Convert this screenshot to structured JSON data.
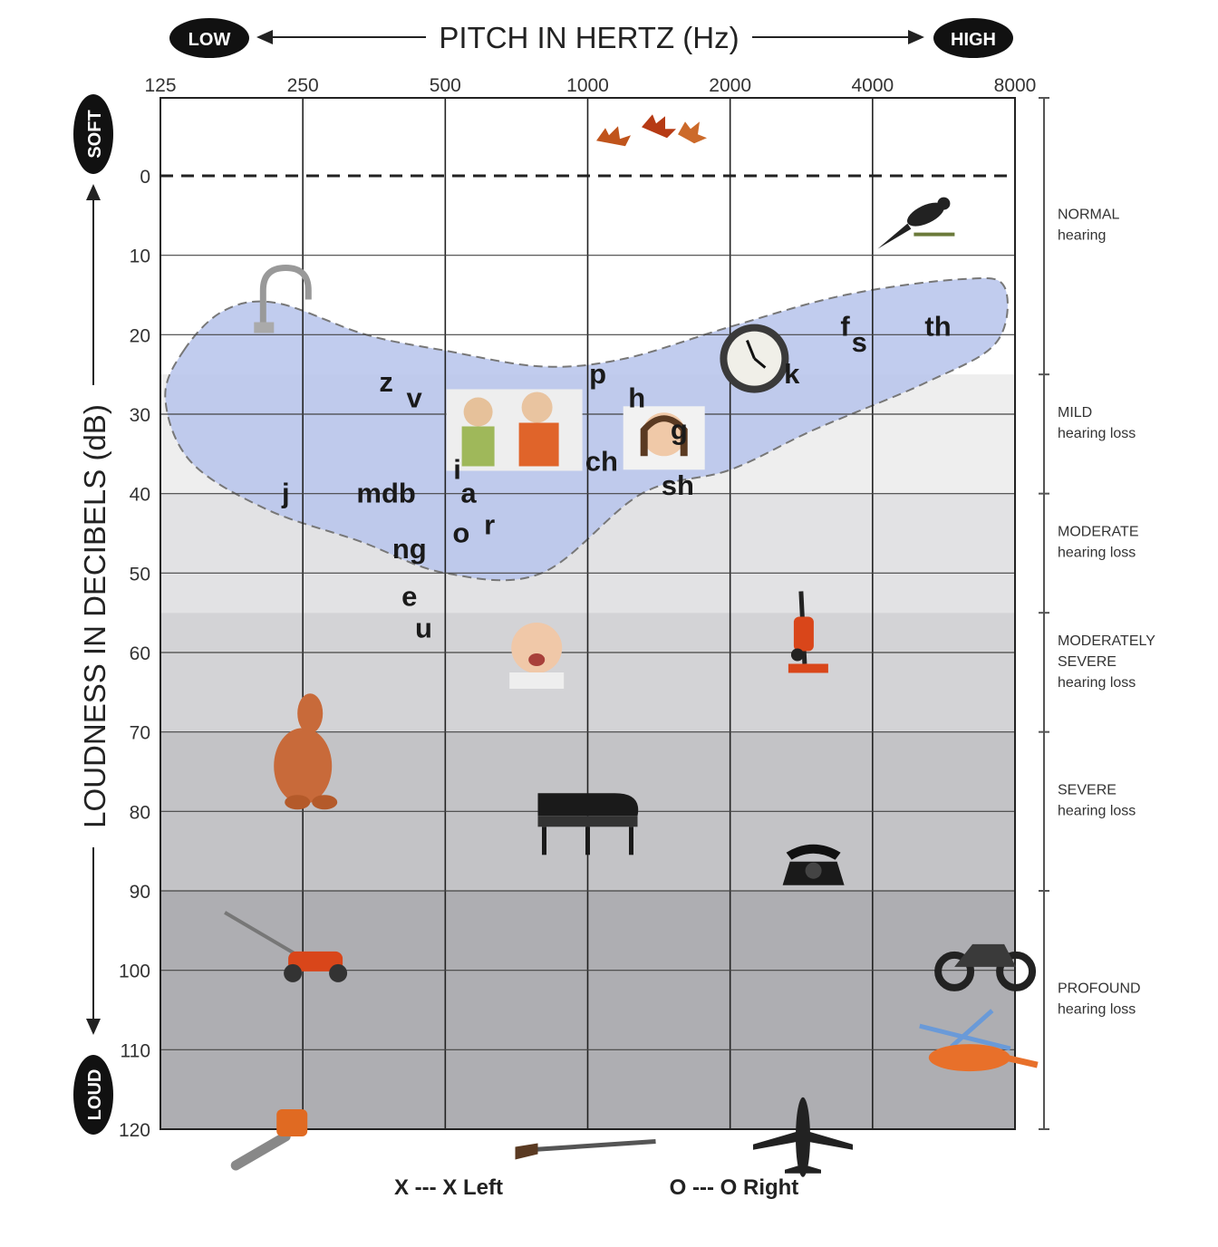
{
  "chart_data": {
    "type": "scatter",
    "x_title": "PITCH IN HERTZ (Hz)",
    "y_title": "LOUDNESS IN DECIBELS (dB)",
    "x_scale": "log2",
    "x_ticks": [
      125,
      250,
      500,
      1000,
      2000,
      4000,
      8000
    ],
    "y_ticks": [
      0,
      10,
      20,
      30,
      40,
      50,
      60,
      70,
      80,
      90,
      100,
      110,
      120
    ],
    "xlim": [
      125,
      8000
    ],
    "ylim": [
      -10,
      120
    ],
    "y_inverted": true,
    "grid": true,
    "x_low_label": "LOW",
    "x_high_label": "HIGH",
    "y_soft_label": "SOFT",
    "y_loud_label": "LOUD",
    "hearing_bands": [
      {
        "name": "NORMAL",
        "sub": "hearing",
        "from": -10,
        "to": 25,
        "color": "#ffffff"
      },
      {
        "name": "MILD",
        "sub": "hearing loss",
        "from": 25,
        "to": 40,
        "color": "#eeeeee"
      },
      {
        "name": "MODERATE",
        "sub": "hearing loss",
        "from": 40,
        "to": 55,
        "color": "#e2e2e4"
      },
      {
        "name": "MODERATELY",
        "name2": "SEVERE",
        "sub": "hearing loss",
        "from": 55,
        "to": 70,
        "color": "#d3d3d6"
      },
      {
        "name": "SEVERE",
        "sub": "hearing loss",
        "from": 70,
        "to": 90,
        "color": "#c3c3c6"
      },
      {
        "name": "PROFOUND",
        "sub": "hearing loss",
        "from": 90,
        "to": 120,
        "color": "#aeaeb2"
      }
    ],
    "speech_sounds": [
      {
        "label": "z",
        "x": 375,
        "y": 26
      },
      {
        "label": "v",
        "x": 430,
        "y": 28
      },
      {
        "label": "j",
        "x": 230,
        "y": 40
      },
      {
        "label": "mdb",
        "x": 375,
        "y": 40
      },
      {
        "label": "ng",
        "x": 420,
        "y": 47
      },
      {
        "label": "e",
        "x": 420,
        "y": 53
      },
      {
        "label": "u",
        "x": 450,
        "y": 57
      },
      {
        "label": "i",
        "x": 530,
        "y": 37
      },
      {
        "label": "a",
        "x": 560,
        "y": 40
      },
      {
        "label": "o",
        "x": 540,
        "y": 45
      },
      {
        "label": "r",
        "x": 620,
        "y": 44
      },
      {
        "label": "p",
        "x": 1050,
        "y": 25
      },
      {
        "label": "h",
        "x": 1270,
        "y": 28
      },
      {
        "label": "ch",
        "x": 1070,
        "y": 36
      },
      {
        "label": "g",
        "x": 1560,
        "y": 32
      },
      {
        "label": "sh",
        "x": 1550,
        "y": 39
      },
      {
        "label": "k",
        "x": 2700,
        "y": 25
      },
      {
        "label": "f",
        "x": 3500,
        "y": 19
      },
      {
        "label": "s",
        "x": 3750,
        "y": 21
      },
      {
        "label": "th",
        "x": 5500,
        "y": 19
      }
    ],
    "speech_banana": [
      [
        140,
        22
      ],
      [
        170,
        17
      ],
      [
        220,
        16
      ],
      [
        340,
        20
      ],
      [
        500,
        22
      ],
      [
        800,
        24
      ],
      [
        1200,
        23
      ],
      [
        2000,
        19
      ],
      [
        3500,
        15
      ],
      [
        6200,
        13
      ],
      [
        7600,
        14
      ],
      [
        7300,
        21
      ],
      [
        5200,
        26
      ],
      [
        3000,
        32
      ],
      [
        2000,
        37
      ],
      [
        1300,
        40
      ],
      [
        800,
        50
      ],
      [
        500,
        50
      ],
      [
        330,
        46
      ],
      [
        210,
        42
      ],
      [
        145,
        36
      ],
      [
        128,
        28
      ]
    ],
    "sound_sources": [
      {
        "name": "leaves",
        "x": 1300,
        "y": -5
      },
      {
        "name": "bird",
        "x": 5000,
        "y": 6
      },
      {
        "name": "faucet",
        "x": 225,
        "y": 15
      },
      {
        "name": "clock",
        "x": 2250,
        "y": 23
      },
      {
        "name": "people",
        "x": 700,
        "y": 32
      },
      {
        "name": "child",
        "x": 1450,
        "y": 33
      },
      {
        "name": "vacuum",
        "x": 2900,
        "y": 58
      },
      {
        "name": "baby",
        "x": 780,
        "y": 60
      },
      {
        "name": "dog",
        "x": 250,
        "y": 72
      },
      {
        "name": "piano",
        "x": 1000,
        "y": 80
      },
      {
        "name": "telephone",
        "x": 3000,
        "y": 87
      },
      {
        "name": "lawnmower",
        "x": 260,
        "y": 99
      },
      {
        "name": "motorcycle",
        "x": 6800,
        "y": 99
      },
      {
        "name": "helicopter",
        "x": 6700,
        "y": 111
      },
      {
        "name": "chainsaw",
        "x": 220,
        "y": 120
      },
      {
        "name": "shotgun",
        "x": 1000,
        "y": 122
      },
      {
        "name": "airplane",
        "x": 2850,
        "y": 121
      }
    ],
    "legend": {
      "left": "X --- X Left",
      "right": "O --- O Right"
    }
  }
}
